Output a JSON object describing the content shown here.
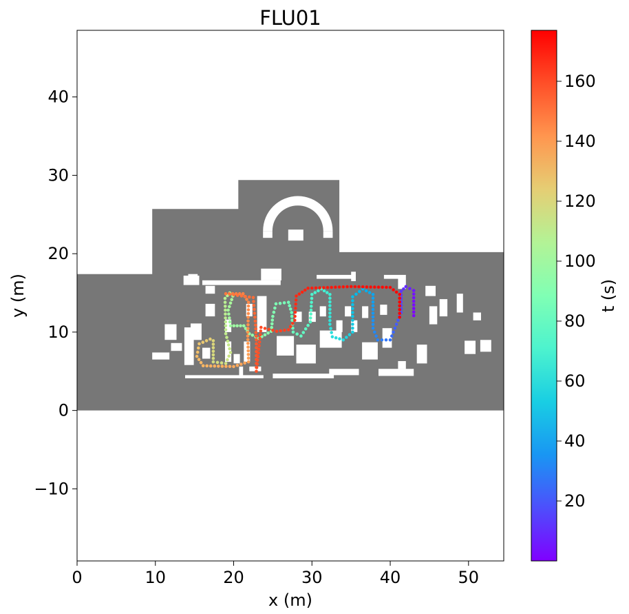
{
  "chart_data": {
    "type": "scatter",
    "title": "FLU01",
    "xlabel": "x (m)",
    "ylabel": "y (m)",
    "xlim": [
      0,
      54.5
    ],
    "ylim": [
      -19.2,
      48.5
    ],
    "xticks": [
      0,
      10,
      20,
      30,
      40,
      50
    ],
    "yticks": [
      -10,
      0,
      10,
      20,
      30,
      40
    ],
    "ytick_labels": [
      "−10",
      "0",
      "10",
      "20",
      "30",
      "40"
    ],
    "grid": false,
    "background_map": {
      "color": "#777777",
      "free_color": "#ffffff",
      "outline": [
        [
          0,
          0
        ],
        [
          54.5,
          0
        ],
        [
          54.5,
          20.2
        ],
        [
          33.5,
          20.2
        ],
        [
          33.5,
          29.4
        ],
        [
          20.6,
          29.4
        ],
        [
          20.6,
          25.7
        ],
        [
          9.6,
          25.7
        ],
        [
          9.6,
          17.4
        ],
        [
          0,
          17.4
        ]
      ],
      "obstacles": [
        [
          13.6,
          16.0,
          2.0,
          1.2
        ],
        [
          14.2,
          16.6,
          1.2,
          0.8
        ],
        [
          16.0,
          16.0,
          10.0,
          0.6
        ],
        [
          23.5,
          16.6,
          2.6,
          1.5
        ],
        [
          30.6,
          16.8,
          5.0,
          0.5
        ],
        [
          35.0,
          16.5,
          0.6,
          1.2
        ],
        [
          13.7,
          5.8,
          1.2,
          4.8
        ],
        [
          11.2,
          9.0,
          1.5,
          2.0
        ],
        [
          9.6,
          6.5,
          2.2,
          0.9
        ],
        [
          12.0,
          7.6,
          1.4,
          1.0
        ],
        [
          14.5,
          9.0,
          1.4,
          2.1
        ],
        [
          23.0,
          10.0,
          1.2,
          4.6
        ],
        [
          25.5,
          7.0,
          2.2,
          2.5
        ],
        [
          28.0,
          6.0,
          2.5,
          2.4
        ],
        [
          31.0,
          8.0,
          2.8,
          2.2
        ],
        [
          36.4,
          6.5,
          2.0,
          2.2
        ],
        [
          39.0,
          8.0,
          1.2,
          2.5
        ],
        [
          32.2,
          4.5,
          3.8,
          0.8
        ],
        [
          38.5,
          4.4,
          4.5,
          0.9
        ],
        [
          41.0,
          5.3,
          1.0,
          1.0
        ],
        [
          27.8,
          11.3,
          0.9,
          1.3
        ],
        [
          29.6,
          11.3,
          0.9,
          1.3
        ],
        [
          33.1,
          10.0,
          0.8,
          1.5
        ],
        [
          35.0,
          10.0,
          0.8,
          1.5
        ],
        [
          34.2,
          12.0,
          0.8,
          1.3
        ],
        [
          31.0,
          12.0,
          0.8,
          1.3
        ],
        [
          36.4,
          11.8,
          0.8,
          1.5
        ],
        [
          38.7,
          12.2,
          0.9,
          1.3
        ],
        [
          16.4,
          14.9,
          1.2,
          1.0
        ],
        [
          16.4,
          12.0,
          1.2,
          1.6
        ],
        [
          21.6,
          12.0,
          0.8,
          1.6
        ],
        [
          18.9,
          10.0,
          0.8,
          1.6
        ],
        [
          18.9,
          6.2,
          0.8,
          2.6
        ],
        [
          21.3,
          6.2,
          0.8,
          2.6
        ],
        [
          16.0,
          6.6,
          1.0,
          1.4
        ],
        [
          20.0,
          6.0,
          0.8,
          1.2
        ],
        [
          46.3,
          12.0,
          1.0,
          2.2
        ],
        [
          48.5,
          12.5,
          0.8,
          2.4
        ],
        [
          49.5,
          7.2,
          1.4,
          1.7
        ],
        [
          51.5,
          7.5,
          1.4,
          1.5
        ],
        [
          50.6,
          11.5,
          1.0,
          1.0
        ],
        [
          43.4,
          6.0,
          1.3,
          2.4
        ],
        [
          45.0,
          11.0,
          1.0,
          2.3
        ],
        [
          41.0,
          15.5,
          1.0,
          1.3
        ],
        [
          44.5,
          14.6,
          1.3,
          1.3
        ],
        [
          39.2,
          16.8,
          2.8,
          0.5
        ],
        [
          13.8,
          4.1,
          10.0,
          0.4
        ],
        [
          25.0,
          4.1,
          7.8,
          0.6
        ],
        [
          20.7,
          4.1,
          0.5,
          1.5
        ],
        [
          22.0,
          5.0,
          1.5,
          0.6
        ]
      ],
      "arch_center": [
        28.2,
        22.9
      ],
      "arch_radius": [
        8.9,
        6.5
      ]
    },
    "colorbar": {
      "label": "t (s)",
      "min": 0,
      "max": 177,
      "ticks": [
        20,
        40,
        60,
        80,
        100,
        120,
        140,
        160
      ],
      "colormap": "rainbow"
    },
    "trajectory_waypoints": [
      [
        43.0,
        12.1,
        0
      ],
      [
        43.0,
        15.3,
        5
      ],
      [
        42.0,
        15.8,
        9
      ],
      [
        41.4,
        15.2,
        12
      ],
      [
        41.4,
        12.5,
        17
      ],
      [
        40.6,
        10.5,
        22
      ],
      [
        40.0,
        9.0,
        26
      ],
      [
        38.4,
        9.0,
        30
      ],
      [
        37.8,
        10.5,
        33
      ],
      [
        37.8,
        14.8,
        40
      ],
      [
        36.5,
        15.5,
        44
      ],
      [
        35.2,
        14.5,
        47
      ],
      [
        35.2,
        10.0,
        53
      ],
      [
        34.0,
        9.0,
        57
      ],
      [
        32.6,
        9.4,
        59
      ],
      [
        32.3,
        11.0,
        61
      ],
      [
        32.3,
        14.8,
        67
      ],
      [
        31.2,
        15.5,
        69
      ],
      [
        30.0,
        14.8,
        71
      ],
      [
        29.8,
        11.3,
        76
      ],
      [
        28.6,
        9.5,
        79
      ],
      [
        27.6,
        10.0,
        81
      ],
      [
        27.4,
        12.5,
        83
      ],
      [
        27.0,
        13.8,
        85
      ],
      [
        25.4,
        13.6,
        88
      ],
      [
        25.0,
        12.0,
        90
      ],
      [
        24.8,
        10.1,
        92
      ],
      [
        23.2,
        9.2,
        94
      ],
      [
        22.0,
        9.8,
        96
      ],
      [
        21.3,
        10.8,
        98
      ],
      [
        19.6,
        10.8,
        100
      ],
      [
        19.3,
        12.8,
        102
      ],
      [
        19.9,
        14.6,
        104
      ],
      [
        19.5,
        15.0,
        106
      ],
      [
        18.9,
        14.3,
        108
      ],
      [
        19.0,
        9.8,
        111
      ],
      [
        19.6,
        7.4,
        114
      ],
      [
        19.0,
        6.0,
        116
      ],
      [
        17.4,
        6.2,
        118
      ],
      [
        17.4,
        8.9,
        121
      ],
      [
        17.0,
        9.1,
        124
      ],
      [
        15.6,
        8.5,
        127
      ],
      [
        15.3,
        6.9,
        130
      ],
      [
        16.1,
        5.7,
        132
      ],
      [
        20.0,
        5.6,
        136
      ],
      [
        21.9,
        6.2,
        138
      ],
      [
        21.8,
        9.5,
        142
      ],
      [
        21.9,
        13.8,
        145
      ],
      [
        21.2,
        14.9,
        147
      ],
      [
        19.0,
        14.9,
        149
      ],
      [
        22.5,
        14.4,
        152
      ],
      [
        22.8,
        10.9,
        154
      ],
      [
        22.9,
        9.0,
        156
      ],
      [
        22.9,
        5.0,
        158
      ],
      [
        23.5,
        10.6,
        160
      ],
      [
        25.5,
        10.1,
        162
      ],
      [
        27.0,
        10.3,
        163
      ],
      [
        27.8,
        11.5,
        165
      ],
      [
        28.0,
        14.6,
        168
      ],
      [
        29.5,
        15.6,
        170
      ],
      [
        35.0,
        15.8,
        173
      ],
      [
        40.0,
        15.7,
        175
      ],
      [
        41.2,
        14.8,
        176
      ],
      [
        41.2,
        11.9,
        177
      ]
    ]
  }
}
